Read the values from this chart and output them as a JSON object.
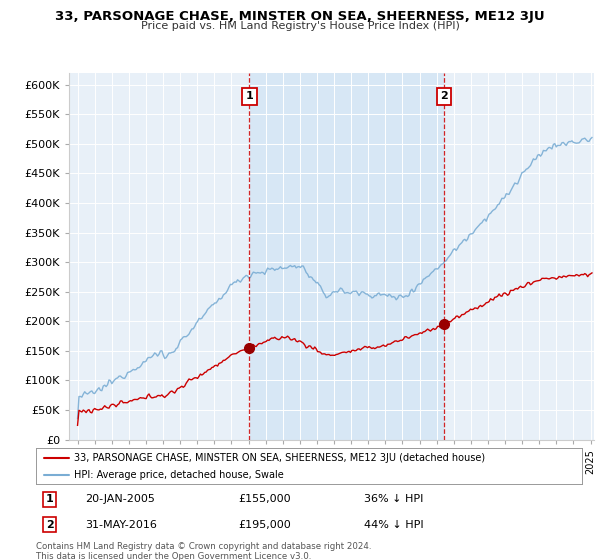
{
  "title": "33, PARSONAGE CHASE, MINSTER ON SEA, SHEERNESS, ME12 3JU",
  "subtitle": "Price paid vs. HM Land Registry's House Price Index (HPI)",
  "footer": "Contains HM Land Registry data © Crown copyright and database right 2024.\nThis data is licensed under the Open Government Licence v3.0.",
  "legend_house": "33, PARSONAGE CHASE, MINSTER ON SEA, SHEERNESS, ME12 3JU (detached house)",
  "legend_hpi": "HPI: Average price, detached house, Swale",
  "sale1_date": "20-JAN-2005",
  "sale1_price": 155000,
  "sale1_label": "36% ↓ HPI",
  "sale2_date": "31-MAY-2016",
  "sale2_price": 195000,
  "sale2_label": "44% ↓ HPI",
  "sale1_x": 2005.05,
  "sale2_x": 2016.42,
  "ylim": [
    0,
    620000
  ],
  "xlim": [
    1994.5,
    2025.2
  ],
  "house_color": "#cc0000",
  "hpi_color": "#7aadd4",
  "vline_color": "#cc0000",
  "marker_color": "#990000",
  "background_color": "#ffffff",
  "plot_bg_color": "#e8f0f8",
  "shade_color": "#d0e4f5",
  "grid_color": "#ffffff"
}
